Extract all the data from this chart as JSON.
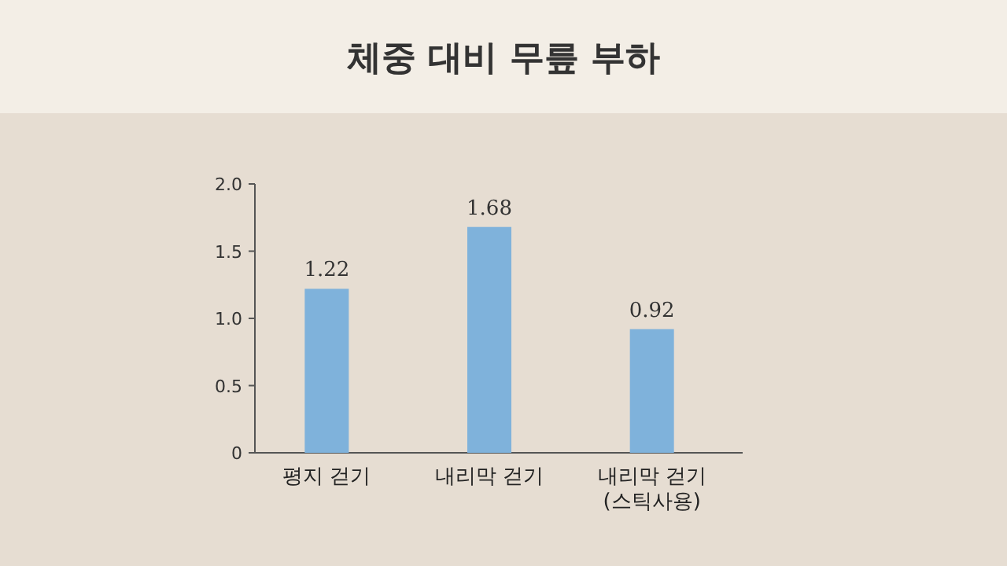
{
  "chart_data": {
    "type": "bar",
    "title": "체중 대비 무릎 부하",
    "categories": [
      "평지 걷기",
      "내리막 걷기",
      "내리막 걷기 (스틱사용)"
    ],
    "values": [
      1.22,
      1.68,
      0.92
    ],
    "color": "#7fb2db",
    "ylim": [
      0,
      2
    ],
    "yticks": [
      0,
      0.5,
      {
        "value": 1,
        "label": "1.0"
      },
      1.5,
      {
        "value": 2,
        "label": "2.0"
      }
    ],
    "data_labels": true
  }
}
